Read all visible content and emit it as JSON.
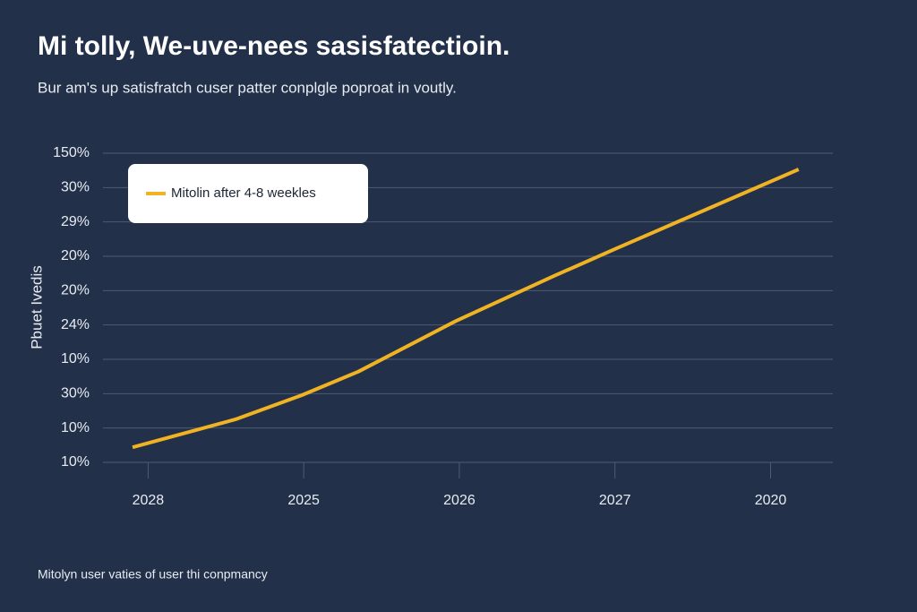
{
  "chart_data": {
    "type": "line",
    "title": "Mi tolly, We-uve-nees sasisfatectioin.",
    "subtitle": "Bur am's up satisfratch cuser patter conplgle poproat in voutly.",
    "ylabel": "Pbuet Ivedis",
    "footer": "Mitolyn user vaties of user thi conpmancy",
    "x": [
      -0.1,
      0.56,
      0.99,
      1.35,
      1.98,
      2.61,
      3.0,
      4.18
    ],
    "series": [
      {
        "name": "Mitolin after 4-8 weekles",
        "color": "#f0b323",
        "values": [
          0.44,
          1.25,
          1.96,
          2.64,
          4.12,
          5.43,
          6.21,
          8.53
        ]
      }
    ],
    "xlim": [
      -0.29,
      4.4
    ],
    "xticks": [
      {
        "value": 0,
        "label": "2028"
      },
      {
        "value": 1,
        "label": "2025"
      },
      {
        "value": 2,
        "label": "2026"
      },
      {
        "value": 3,
        "label": "2027"
      },
      {
        "value": 4,
        "label": "2020"
      }
    ],
    "ylim": [
      0,
      9
    ],
    "yticks": [
      {
        "value": 0,
        "label": "10%"
      },
      {
        "value": 1,
        "label": "10%"
      },
      {
        "value": 2,
        "label": "30%"
      },
      {
        "value": 3,
        "label": "10%"
      },
      {
        "value": 4,
        "label": "24%"
      },
      {
        "value": 5,
        "label": "20%"
      },
      {
        "value": 6,
        "label": "20%"
      },
      {
        "value": 7,
        "label": "29%"
      },
      {
        "value": 8,
        "label": "30%"
      },
      {
        "value": 9,
        "label": "150%"
      }
    ],
    "grid": true
  }
}
